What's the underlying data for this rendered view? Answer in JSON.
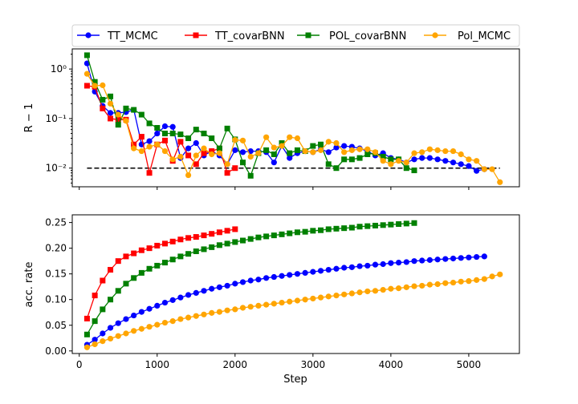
{
  "chart_data": [
    {
      "type": "line",
      "yscale": "log",
      "ylabel": "R − 1",
      "xlabel": "",
      "xlim": [
        -90,
        5650
      ],
      "ylim": [
        0.0042,
        2.55
      ],
      "y_ticks": [
        {
          "value": 0.01,
          "label": "10⁻²"
        },
        {
          "value": 0.1,
          "label": "10⁻¹"
        },
        {
          "value": 1,
          "label": "10⁰"
        }
      ],
      "reference_line": {
        "value": 0.01,
        "x_range": [
          100,
          5400
        ],
        "style": "dashed",
        "color": "#000000"
      },
      "legend": {
        "placement": "top (above plots)",
        "columns": 4
      },
      "series": [
        {
          "name": "TT_MCMC",
          "color": "#0000ff",
          "marker": "circle",
          "x": [
            100,
            200,
            300,
            400,
            500,
            600,
            700,
            800,
            900,
            1000,
            1100,
            1200,
            1300,
            1400,
            1500,
            1600,
            1700,
            1800,
            1900,
            2000,
            2100,
            2200,
            2300,
            2400,
            2500,
            2600,
            2700,
            2800,
            2900,
            3000,
            3100,
            3200,
            3300,
            3400,
            3500,
            3600,
            3700,
            3800,
            3900,
            4000,
            4100,
            4200,
            4300,
            4400,
            4500,
            4600,
            4700,
            4800,
            4900,
            5000,
            5100,
            5200
          ],
          "y": [
            1.3,
            0.35,
            0.18,
            0.13,
            0.13,
            0.135,
            0.15,
            0.03,
            0.035,
            0.05,
            0.07,
            0.068,
            0.016,
            0.025,
            0.032,
            0.018,
            0.022,
            0.018,
            0.012,
            0.023,
            0.021,
            0.022,
            0.022,
            0.021,
            0.013,
            0.028,
            0.016,
            0.02,
            0.022,
            0.021,
            0.024,
            0.021,
            0.026,
            0.028,
            0.027,
            0.025,
            0.022,
            0.018,
            0.02,
            0.016,
            0.015,
            0.013,
            0.015,
            0.016,
            0.016,
            0.015,
            0.014,
            0.013,
            0.012,
            0.011,
            0.0088,
            0.0095
          ]
        },
        {
          "name": "TT_covarBNN",
          "color": "#ff0000",
          "marker": "square",
          "x": [
            100,
            200,
            300,
            400,
            500,
            600,
            700,
            800,
            900,
            1000,
            1100,
            1200,
            1300,
            1400,
            1500,
            1600,
            1700,
            1800,
            1900,
            2000
          ],
          "y": [
            0.46,
            0.44,
            0.16,
            0.1,
            0.095,
            0.095,
            0.03,
            0.043,
            0.008,
            0.03,
            0.036,
            0.014,
            0.034,
            0.018,
            0.012,
            0.02,
            0.022,
            0.025,
            0.008,
            0.01
          ]
        },
        {
          "name": "POL_covarBNN",
          "color": "#008000",
          "marker": "square",
          "x": [
            100,
            200,
            300,
            400,
            500,
            600,
            700,
            800,
            900,
            1000,
            1100,
            1200,
            1300,
            1400,
            1500,
            1600,
            1700,
            1800,
            1900,
            2000,
            2100,
            2200,
            2300,
            2400,
            2500,
            2600,
            2700,
            2800,
            2900,
            3000,
            3100,
            3200,
            3300,
            3400,
            3500,
            3600,
            3700,
            3800,
            3900,
            4000,
            4100,
            4200,
            4300
          ],
          "y": [
            1.9,
            0.55,
            0.24,
            0.28,
            0.075,
            0.16,
            0.15,
            0.12,
            0.08,
            0.065,
            0.05,
            0.05,
            0.048,
            0.04,
            0.06,
            0.05,
            0.04,
            0.025,
            0.063,
            0.038,
            0.013,
            0.007,
            0.02,
            0.023,
            0.019,
            0.032,
            0.02,
            0.023,
            0.022,
            0.028,
            0.03,
            0.012,
            0.01,
            0.015,
            0.015,
            0.016,
            0.019,
            0.02,
            0.017,
            0.015,
            0.015,
            0.01,
            0.009
          ]
        },
        {
          "name": "Pol_MCMC",
          "color": "#ffa500",
          "marker": "circle",
          "x": [
            100,
            200,
            300,
            400,
            500,
            600,
            700,
            800,
            900,
            1000,
            1100,
            1200,
            1300,
            1400,
            1500,
            1600,
            1700,
            1800,
            1900,
            2000,
            2100,
            2200,
            2300,
            2400,
            2500,
            2600,
            2700,
            2800,
            2900,
            3000,
            3100,
            3200,
            3300,
            3400,
            3500,
            3600,
            3700,
            3800,
            3900,
            4000,
            4100,
            4200,
            4300,
            4400,
            4500,
            4600,
            4700,
            4800,
            4900,
            5000,
            5100,
            5200,
            5300,
            5400
          ],
          "y": [
            0.8,
            0.46,
            0.47,
            0.2,
            0.12,
            0.09,
            0.025,
            0.022,
            0.027,
            0.03,
            0.022,
            0.015,
            0.017,
            0.0072,
            0.018,
            0.025,
            0.019,
            0.02,
            0.012,
            0.037,
            0.036,
            0.017,
            0.02,
            0.042,
            0.026,
            0.028,
            0.042,
            0.04,
            0.022,
            0.021,
            0.023,
            0.034,
            0.032,
            0.021,
            0.023,
            0.024,
            0.024,
            0.021,
            0.014,
            0.012,
            0.014,
            0.013,
            0.02,
            0.021,
            0.024,
            0.023,
            0.022,
            0.022,
            0.019,
            0.015,
            0.014,
            0.0095,
            0.0095,
            0.0052
          ]
        }
      ]
    },
    {
      "type": "line",
      "xlabel": "Step",
      "ylabel": "acc. rate",
      "xlim": [
        -90,
        5650
      ],
      "ylim": [
        -0.005,
        0.265
      ],
      "x_ticks": [
        0,
        1000,
        2000,
        3000,
        4000,
        5000
      ],
      "y_ticks": [
        0.0,
        0.05,
        0.1,
        0.15,
        0.2,
        0.25
      ],
      "y_tick_labels": [
        "0.00",
        "0.05",
        "0.10",
        "0.15",
        "0.20",
        "0.25"
      ],
      "series": [
        {
          "name": "TT_MCMC",
          "color": "#0000ff",
          "marker": "circle",
          "x": [
            100,
            200,
            300,
            400,
            500,
            600,
            700,
            800,
            900,
            1000,
            1100,
            1200,
            1300,
            1400,
            1500,
            1600,
            1700,
            1800,
            1900,
            2000,
            2100,
            2200,
            2300,
            2400,
            2500,
            2600,
            2700,
            2800,
            2900,
            3000,
            3100,
            3200,
            3300,
            3400,
            3500,
            3600,
            3700,
            3800,
            3900,
            4000,
            4100,
            4200,
            4300,
            4400,
            4500,
            4600,
            4700,
            4800,
            4900,
            5000,
            5100,
            5200
          ],
          "y": [
            0.012,
            0.022,
            0.034,
            0.045,
            0.054,
            0.062,
            0.069,
            0.076,
            0.082,
            0.088,
            0.094,
            0.099,
            0.104,
            0.109,
            0.113,
            0.117,
            0.121,
            0.124,
            0.127,
            0.131,
            0.134,
            0.137,
            0.139,
            0.142,
            0.144,
            0.146,
            0.148,
            0.15,
            0.152,
            0.154,
            0.156,
            0.158,
            0.16,
            0.162,
            0.163,
            0.165,
            0.166,
            0.168,
            0.169,
            0.171,
            0.172,
            0.173,
            0.175,
            0.176,
            0.177,
            0.178,
            0.179,
            0.18,
            0.181,
            0.182,
            0.183,
            0.184
          ]
        },
        {
          "name": "TT_covarBNN",
          "color": "#ff0000",
          "marker": "square",
          "x": [
            100,
            200,
            300,
            400,
            500,
            600,
            700,
            800,
            900,
            1000,
            1100,
            1200,
            1300,
            1400,
            1500,
            1600,
            1700,
            1800,
            1900,
            2000
          ],
          "y": [
            0.063,
            0.108,
            0.137,
            0.158,
            0.175,
            0.184,
            0.19,
            0.196,
            0.2,
            0.205,
            0.209,
            0.213,
            0.217,
            0.22,
            0.222,
            0.225,
            0.228,
            0.231,
            0.234,
            0.237
          ]
        },
        {
          "name": "POL_covarBNN",
          "color": "#008000",
          "marker": "square",
          "x": [
            100,
            200,
            300,
            400,
            500,
            600,
            700,
            800,
            900,
            1000,
            1100,
            1200,
            1300,
            1400,
            1500,
            1600,
            1700,
            1800,
            1900,
            2000,
            2100,
            2200,
            2300,
            2400,
            2500,
            2600,
            2700,
            2800,
            2900,
            3000,
            3100,
            3200,
            3300,
            3400,
            3500,
            3600,
            3700,
            3800,
            3900,
            4000,
            4100,
            4200,
            4300
          ],
          "y": [
            0.032,
            0.058,
            0.081,
            0.1,
            0.117,
            0.131,
            0.142,
            0.152,
            0.16,
            0.166,
            0.172,
            0.178,
            0.184,
            0.189,
            0.194,
            0.198,
            0.202,
            0.206,
            0.209,
            0.212,
            0.215,
            0.218,
            0.221,
            0.223,
            0.225,
            0.227,
            0.229,
            0.231,
            0.232,
            0.234,
            0.235,
            0.237,
            0.238,
            0.239,
            0.24,
            0.242,
            0.243,
            0.244,
            0.245,
            0.246,
            0.247,
            0.248,
            0.249
          ]
        },
        {
          "name": "Pol_MCMC",
          "color": "#ffa500",
          "marker": "circle",
          "x": [
            100,
            200,
            300,
            400,
            500,
            600,
            700,
            800,
            900,
            1000,
            1100,
            1200,
            1300,
            1400,
            1500,
            1600,
            1700,
            1800,
            1900,
            2000,
            2100,
            2200,
            2300,
            2400,
            2500,
            2600,
            2700,
            2800,
            2900,
            3000,
            3100,
            3200,
            3300,
            3400,
            3500,
            3600,
            3700,
            3800,
            3900,
            4000,
            4100,
            4200,
            4300,
            4400,
            4500,
            4600,
            4700,
            4800,
            4900,
            5000,
            5100,
            5200,
            5300,
            5400
          ],
          "y": [
            0.007,
            0.013,
            0.019,
            0.024,
            0.029,
            0.034,
            0.039,
            0.043,
            0.047,
            0.051,
            0.055,
            0.058,
            0.062,
            0.065,
            0.068,
            0.071,
            0.074,
            0.076,
            0.079,
            0.081,
            0.084,
            0.086,
            0.088,
            0.09,
            0.092,
            0.094,
            0.096,
            0.098,
            0.1,
            0.102,
            0.104,
            0.106,
            0.108,
            0.11,
            0.112,
            0.114,
            0.116,
            0.117,
            0.119,
            0.121,
            0.122,
            0.124,
            0.126,
            0.127,
            0.129,
            0.13,
            0.132,
            0.133,
            0.135,
            0.136,
            0.138,
            0.14,
            0.145,
            0.149
          ]
        }
      ]
    }
  ]
}
